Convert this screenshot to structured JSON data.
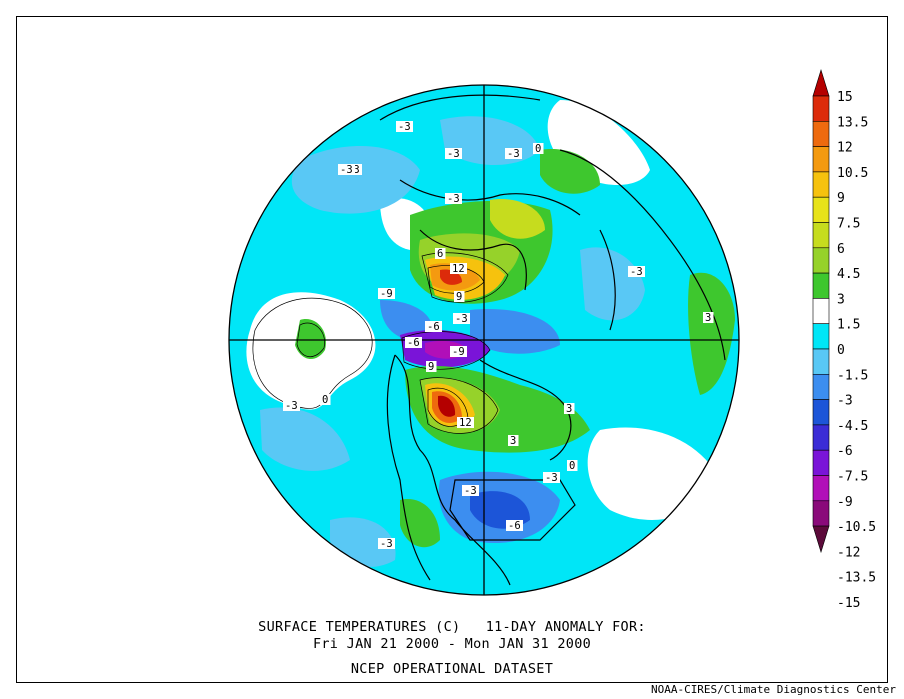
{
  "map": {
    "projection": "north polar stereographic",
    "variable": "surface temperature anomaly",
    "unit": "C",
    "contour_labels": [
      {
        "text": "-3"
      },
      {
        "text": "-3"
      },
      {
        "text": "-3"
      },
      {
        "text": "-3"
      },
      {
        "text": "-3"
      },
      {
        "text": "0"
      },
      {
        "text": "-3"
      },
      {
        "text": "6"
      },
      {
        "text": "12"
      },
      {
        "text": "-9"
      },
      {
        "text": "9"
      },
      {
        "text": "-6"
      },
      {
        "text": "-3"
      },
      {
        "text": "-9"
      },
      {
        "text": "-6"
      },
      {
        "text": "9"
      },
      {
        "text": "12"
      },
      {
        "text": "3"
      },
      {
        "text": "3"
      },
      {
        "text": "0"
      },
      {
        "text": "-3"
      },
      {
        "text": "-3"
      },
      {
        "text": "-6"
      },
      {
        "text": "-3"
      },
      {
        "text": "3"
      },
      {
        "text": "0"
      },
      {
        "text": "-3"
      },
      {
        "text": "-3"
      }
    ]
  },
  "colorbar": {
    "labels": [
      "15",
      "13.5",
      "12",
      "10.5",
      "9",
      "7.5",
      "6",
      "4.5",
      "3",
      "1.5",
      "0",
      "-1.5",
      "-3",
      "-4.5",
      "-6",
      "-7.5",
      "-9",
      "-10.5",
      "-12",
      "-13.5",
      "-15"
    ],
    "colors": [
      "#5c0a3a",
      "#8a0a7a",
      "#b10fb8",
      "#7a14d8",
      "#3b2cd6",
      "#1c55d8",
      "#3c8ef0",
      "#59c8f5",
      "#00e6f7",
      "#ffffff",
      "#3ec72e",
      "#96d22a",
      "#c6dc1e",
      "#e8e31a",
      "#f6c20e",
      "#f49a10",
      "#ee6a0e",
      "#dc2b0a",
      "#b40000"
    ]
  },
  "caption": {
    "line1": "SURFACE TEMPERATURES (C)   11-DAY ANOMALY FOR:",
    "line2": "Fri JAN 21 2000 - Mon JAN 31 2000",
    "line3": "NCEP OPERATIONAL DATASET"
  },
  "credit": "NOAA-CIRES/Climate Diagnostics Center"
}
